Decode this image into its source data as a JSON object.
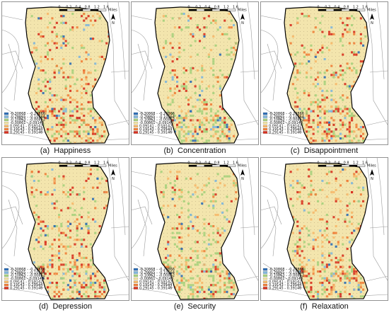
{
  "figure": {
    "scale_labels": [
      "0",
      "0.2",
      "0.4",
      "0.8",
      "1.2",
      "1.6"
    ],
    "scale_unit": "Miles",
    "north_symbol": "N",
    "legend_colors": [
      "#2e6db5",
      "#7fb6dc",
      "#a6d07c",
      "#f2e3a0",
      "#f6b86a",
      "#ef7f3a",
      "#d7301f"
    ],
    "legend_ranges": [
      "-0.30868 - -0.20866",
      "-0.20865 - -0.10864",
      "-0.10863 - -0.00862",
      "-0.00861 - 0.09140",
      "0.09141 - 0.19142",
      "0.19143 - 0.29144",
      "0.29145 - 0.39146"
    ],
    "panels": [
      {
        "letter": "(a)",
        "name": "Happiness"
      },
      {
        "letter": "(b)",
        "name": "Concentration"
      },
      {
        "letter": "(c)",
        "name": "Disappointment"
      },
      {
        "letter": "(d)",
        "name": "Depression"
      },
      {
        "letter": "(e)",
        "name": "Security"
      },
      {
        "letter": "(f)",
        "name": "Relaxation"
      }
    ]
  }
}
